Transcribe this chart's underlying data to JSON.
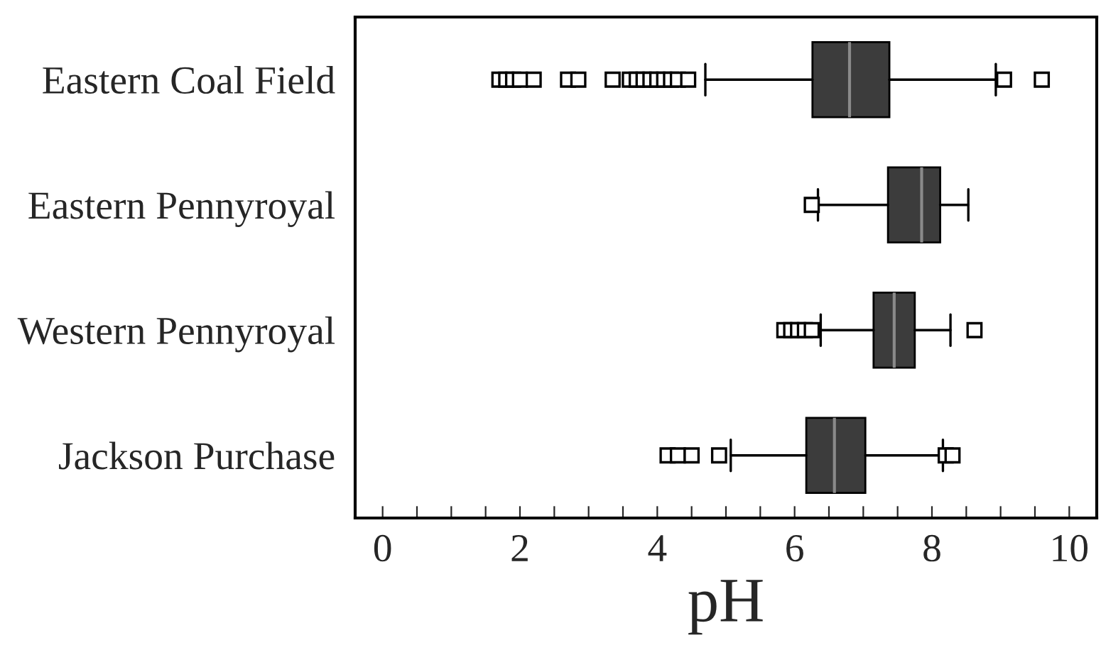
{
  "chart_data": {
    "type": "box",
    "orientation": "horizontal",
    "xlabel": "pH",
    "categories": [
      "Eastern Coal Field",
      "Eastern Pennyroyal",
      "Western Pennyroyal",
      "Jackson Purchase"
    ],
    "series": [
      {
        "color": "#3c3c3c",
        "boxes": [
          {
            "low": 4.7,
            "q1": 6.26,
            "median": 6.8,
            "q3": 7.38,
            "high": 8.93,
            "outliers": [
              1.7,
              1.8,
              1.9,
              2.0,
              2.2,
              2.7,
              2.85,
              3.35,
              3.6,
              3.7,
              3.8,
              3.9,
              4.0,
              4.1,
              4.2,
              4.3,
              4.45,
              9.05,
              9.6
            ]
          },
          {
            "low": 6.34,
            "q1": 7.36,
            "median": 7.85,
            "q3": 8.12,
            "high": 8.53,
            "outliers": [
              6.25
            ]
          },
          {
            "low": 6.38,
            "q1": 7.15,
            "median": 7.45,
            "q3": 7.75,
            "high": 8.27,
            "outliers": [
              5.85,
              5.95,
              6.05,
              6.15,
              6.25,
              8.62
            ]
          },
          {
            "low": 5.07,
            "q1": 6.17,
            "median": 6.58,
            "q3": 7.03,
            "high": 8.16,
            "outliers": [
              4.15,
              4.3,
              4.5,
              4.9,
              8.2,
              8.3
            ]
          }
        ]
      }
    ],
    "xlim": [
      -0.4,
      10.4
    ],
    "xticks": [
      0,
      {
        "value": 0.5,
        "label": null
      },
      2,
      {
        "value": 1,
        "label": null
      },
      {
        "value": 1.5,
        "label": null
      },
      {
        "value": 2.5,
        "label": null
      },
      {
        "value": 3,
        "label": null
      },
      {
        "value": 3.5,
        "label": null
      },
      4,
      {
        "value": 4.5,
        "label": null
      },
      {
        "value": 5,
        "label": null
      },
      {
        "value": 5.5,
        "label": null
      },
      6,
      {
        "value": 6.5,
        "label": null
      },
      {
        "value": 7,
        "label": null
      },
      {
        "value": 7.5,
        "label": null
      },
      8,
      {
        "value": 8.5,
        "label": null
      },
      {
        "value": 9,
        "label": null
      },
      {
        "value": 9.5,
        "label": null
      },
      10
    ],
    "marker": "square",
    "grid": false
  }
}
